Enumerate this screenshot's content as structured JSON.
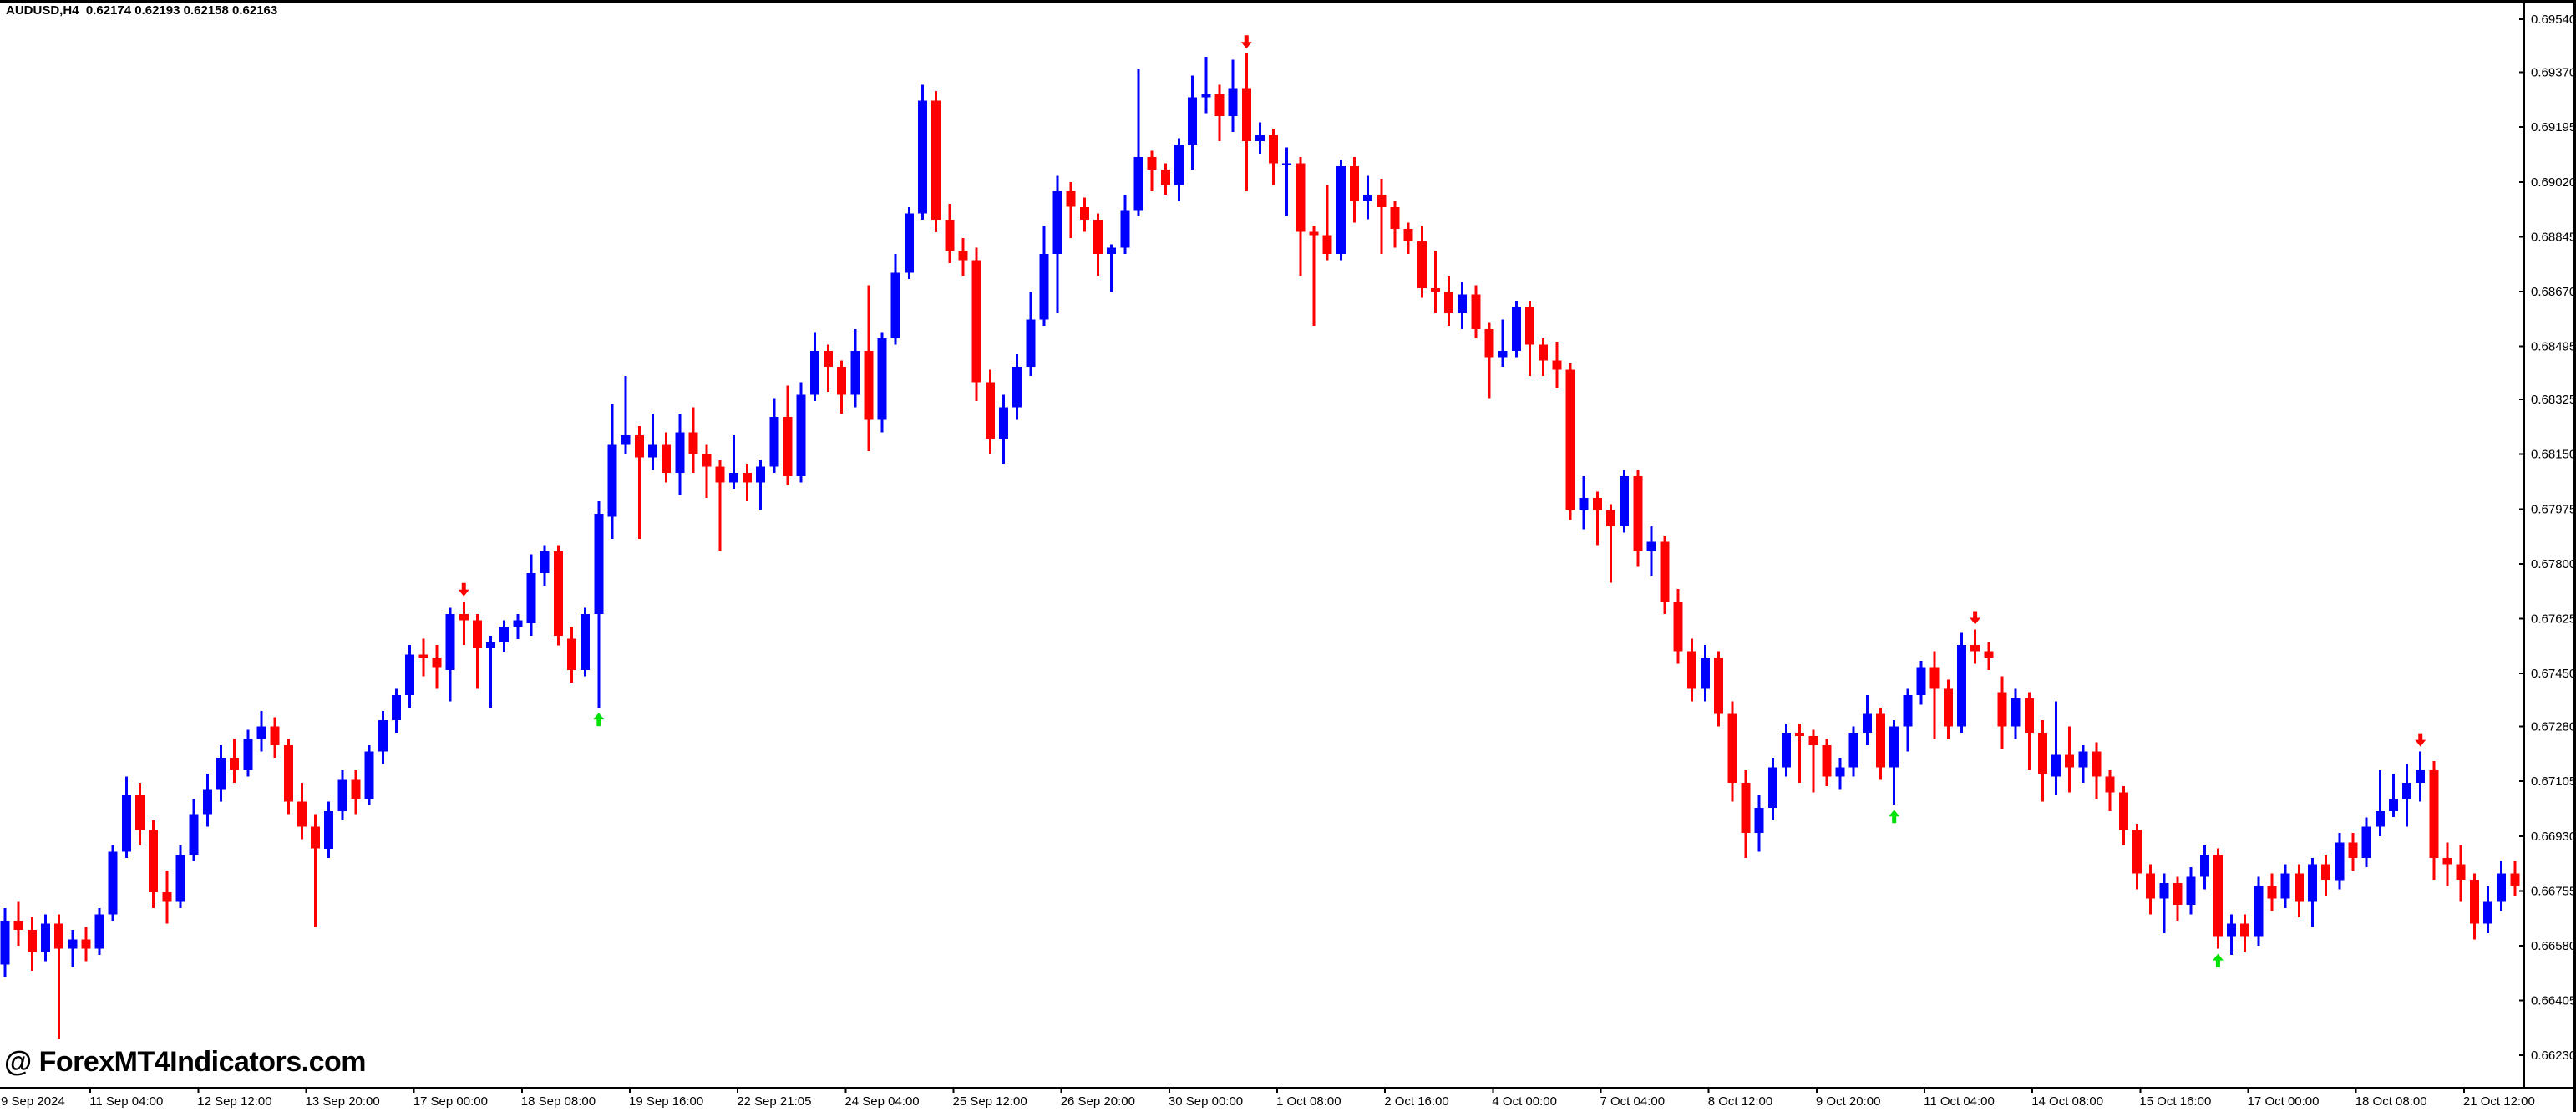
{
  "window": {
    "title": "AUDUSD,H4  0.62174 0.62193 0.62158 0.62163"
  },
  "watermark": {
    "text": "@ ForexMT4Indicators.com"
  },
  "chart_data": {
    "type": "candlestick",
    "symbol": "AUDUSD",
    "timeframe": "H4",
    "grid": false,
    "colors": {
      "up": "#0000ff",
      "down": "#ff0000",
      "arrow_up": "#00e205",
      "arrow_down": "#ff0000",
      "axis": "#000000",
      "background": "#ffffff",
      "text": "#000000"
    },
    "price_axis": {
      "side": "right",
      "top_price": 0.6954,
      "bottom_price": 0.6623,
      "ticks": [
        "0.69540",
        "0.69370",
        "0.69195",
        "0.69020",
        "0.68845",
        "0.68670",
        "0.68495",
        "0.68325",
        "0.68150",
        "0.67975",
        "0.67800",
        "0.67625",
        "0.67450",
        "0.67280",
        "0.67105",
        "0.66930",
        "0.66755",
        "0.66580",
        "0.66405",
        "0.66230"
      ]
    },
    "time_axis": {
      "labels": [
        "9 Sep 2024",
        "11 Sep 04:00",
        "12 Sep 12:00",
        "13 Sep 20:00",
        "17 Sep 00:00",
        "18 Sep 08:00",
        "19 Sep 16:00",
        "22 Sep 21:05",
        "24 Sep 04:00",
        "25 Sep 12:00",
        "26 Sep 20:00",
        "30 Sep 00:00",
        "1 Oct 08:00",
        "2 Oct 16:00",
        "4 Oct 00:00",
        "7 Oct 04:00",
        "8 Oct 12:00",
        "9 Oct 20:00",
        "11 Oct 04:00",
        "14 Oct 08:00",
        "15 Oct 16:00",
        "17 Oct 00:00",
        "18 Oct 08:00",
        "21 Oct 12:00"
      ]
    },
    "candles": [
      [
        0.6652,
        0.667,
        0.6648,
        0.6666
      ],
      [
        0.6666,
        0.6672,
        0.6658,
        0.6663
      ],
      [
        0.6663,
        0.6667,
        0.665,
        0.6656
      ],
      [
        0.6656,
        0.6668,
        0.6653,
        0.6665
      ],
      [
        0.6665,
        0.6668,
        0.6628,
        0.6657
      ],
      [
        0.6657,
        0.6663,
        0.6651,
        0.666
      ],
      [
        0.666,
        0.6664,
        0.6653,
        0.6657
      ],
      [
        0.6657,
        0.667,
        0.6655,
        0.6668
      ],
      [
        0.6668,
        0.669,
        0.6666,
        0.6688
      ],
      [
        0.6688,
        0.6712,
        0.6686,
        0.6706
      ],
      [
        0.6706,
        0.671,
        0.669,
        0.6695
      ],
      [
        0.6695,
        0.6698,
        0.667,
        0.6675
      ],
      [
        0.6675,
        0.6682,
        0.6665,
        0.6672
      ],
      [
        0.6672,
        0.669,
        0.667,
        0.6687
      ],
      [
        0.6687,
        0.6705,
        0.6685,
        0.67
      ],
      [
        0.67,
        0.6713,
        0.6696,
        0.6708
      ],
      [
        0.6708,
        0.6722,
        0.6704,
        0.6718
      ],
      [
        0.6718,
        0.6724,
        0.671,
        0.6714
      ],
      [
        0.6714,
        0.6727,
        0.6712,
        0.6724
      ],
      [
        0.6724,
        0.6733,
        0.672,
        0.6728
      ],
      [
        0.6728,
        0.6731,
        0.6718,
        0.6722
      ],
      [
        0.6722,
        0.6724,
        0.67,
        0.6704
      ],
      [
        0.6704,
        0.671,
        0.6692,
        0.6696
      ],
      [
        0.6696,
        0.67,
        0.6664,
        0.6689
      ],
      [
        0.6689,
        0.6704,
        0.6686,
        0.6701
      ],
      [
        0.6701,
        0.6714,
        0.6698,
        0.6711
      ],
      [
        0.6711,
        0.6714,
        0.67,
        0.6705
      ],
      [
        0.6705,
        0.6722,
        0.6703,
        0.672
      ],
      [
        0.672,
        0.6733,
        0.6716,
        0.673
      ],
      [
        0.673,
        0.674,
        0.6726,
        0.6738
      ],
      [
        0.6738,
        0.6754,
        0.6734,
        0.6751
      ],
      [
        0.6751,
        0.6756,
        0.6744,
        0.675
      ],
      [
        0.675,
        0.6754,
        0.674,
        0.6747
      ],
      [
        0.6746,
        0.6766,
        0.6736,
        0.6764
      ],
      [
        0.6764,
        0.6768,
        0.6754,
        0.6762
      ],
      [
        0.6762,
        0.6764,
        0.674,
        0.6753
      ],
      [
        0.6753,
        0.6757,
        0.6734,
        0.6755
      ],
      [
        0.6755,
        0.6762,
        0.6752,
        0.676
      ],
      [
        0.676,
        0.6764,
        0.6756,
        0.6762
      ],
      [
        0.6761,
        0.6783,
        0.6757,
        0.6777
      ],
      [
        0.6777,
        0.6786,
        0.6773,
        0.6784
      ],
      [
        0.6784,
        0.6786,
        0.6754,
        0.6757
      ],
      [
        0.6756,
        0.676,
        0.6742,
        0.6746
      ],
      [
        0.6746,
        0.6766,
        0.6744,
        0.6764
      ],
      [
        0.6764,
        0.68,
        0.6734,
        0.6796
      ],
      [
        0.6795,
        0.6831,
        0.6788,
        0.6818
      ],
      [
        0.6818,
        0.684,
        0.6815,
        0.6821
      ],
      [
        0.6821,
        0.6824,
        0.6788,
        0.6814
      ],
      [
        0.6814,
        0.6828,
        0.681,
        0.6818
      ],
      [
        0.6818,
        0.6822,
        0.6806,
        0.6809
      ],
      [
        0.6809,
        0.6828,
        0.6802,
        0.6822
      ],
      [
        0.6822,
        0.683,
        0.6809,
        0.6815
      ],
      [
        0.6815,
        0.6818,
        0.6801,
        0.6811
      ],
      [
        0.6811,
        0.6813,
        0.6784,
        0.6806
      ],
      [
        0.6806,
        0.6821,
        0.6804,
        0.6809
      ],
      [
        0.6809,
        0.6812,
        0.68,
        0.6806
      ],
      [
        0.6806,
        0.6813,
        0.6797,
        0.6811
      ],
      [
        0.6811,
        0.6833,
        0.6809,
        0.6827
      ],
      [
        0.6827,
        0.6837,
        0.6805,
        0.6808
      ],
      [
        0.6808,
        0.6838,
        0.6806,
        0.6834
      ],
      [
        0.6834,
        0.6854,
        0.6832,
        0.6848
      ],
      [
        0.6848,
        0.685,
        0.6835,
        0.6843
      ],
      [
        0.6843,
        0.6845,
        0.6828,
        0.6834
      ],
      [
        0.6834,
        0.6855,
        0.683,
        0.6848
      ],
      [
        0.6848,
        0.6869,
        0.6816,
        0.6826
      ],
      [
        0.6826,
        0.6854,
        0.6822,
        0.6852
      ],
      [
        0.6852,
        0.6879,
        0.685,
        0.6873
      ],
      [
        0.6873,
        0.6894,
        0.6871,
        0.6892
      ],
      [
        0.6892,
        0.6933,
        0.689,
        0.6928
      ],
      [
        0.6928,
        0.6931,
        0.6886,
        0.689
      ],
      [
        0.689,
        0.6895,
        0.6876,
        0.688
      ],
      [
        0.688,
        0.6884,
        0.6872,
        0.6877
      ],
      [
        0.6877,
        0.6881,
        0.6832,
        0.6838
      ],
      [
        0.6838,
        0.6842,
        0.6815,
        0.682
      ],
      [
        0.682,
        0.6834,
        0.6812,
        0.683
      ],
      [
        0.683,
        0.6847,
        0.6826,
        0.6843
      ],
      [
        0.6843,
        0.6867,
        0.684,
        0.6858
      ],
      [
        0.6858,
        0.6888,
        0.6856,
        0.6879
      ],
      [
        0.6879,
        0.6904,
        0.686,
        0.6899
      ],
      [
        0.6899,
        0.6902,
        0.6884,
        0.6894
      ],
      [
        0.6894,
        0.6897,
        0.6886,
        0.689
      ],
      [
        0.689,
        0.6892,
        0.6872,
        0.6879
      ],
      [
        0.6879,
        0.6882,
        0.6867,
        0.6881
      ],
      [
        0.6881,
        0.6898,
        0.6879,
        0.6893
      ],
      [
        0.6893,
        0.6938,
        0.6891,
        0.691
      ],
      [
        0.691,
        0.6912,
        0.6899,
        0.6906
      ],
      [
        0.6906,
        0.6908,
        0.6898,
        0.6901
      ],
      [
        0.6901,
        0.6916,
        0.6896,
        0.6914
      ],
      [
        0.6914,
        0.6936,
        0.6906,
        0.6929
      ],
      [
        0.6929,
        0.6942,
        0.6924,
        0.693
      ],
      [
        0.693,
        0.6933,
        0.6915,
        0.6923
      ],
      [
        0.6923,
        0.6941,
        0.6918,
        0.6932
      ],
      [
        0.6932,
        0.6943,
        0.6899,
        0.6915
      ],
      [
        0.6915,
        0.6921,
        0.6911,
        0.6917
      ],
      [
        0.6917,
        0.6919,
        0.6901,
        0.6908
      ],
      [
        0.6908,
        0.6913,
        0.6891,
        0.6908
      ],
      [
        0.6908,
        0.691,
        0.6872,
        0.6886
      ],
      [
        0.6886,
        0.6888,
        0.6856,
        0.6885
      ],
      [
        0.6885,
        0.6901,
        0.6877,
        0.6879
      ],
      [
        0.6879,
        0.6909,
        0.6877,
        0.6907
      ],
      [
        0.6907,
        0.691,
        0.6889,
        0.6896
      ],
      [
        0.6896,
        0.6904,
        0.689,
        0.6898
      ],
      [
        0.6898,
        0.6903,
        0.6879,
        0.6894
      ],
      [
        0.6894,
        0.6896,
        0.6881,
        0.6887
      ],
      [
        0.6887,
        0.6889,
        0.6879,
        0.6883
      ],
      [
        0.6883,
        0.6888,
        0.6865,
        0.6868
      ],
      [
        0.6868,
        0.688,
        0.686,
        0.6867
      ],
      [
        0.6867,
        0.6872,
        0.6856,
        0.686
      ],
      [
        0.686,
        0.687,
        0.6855,
        0.6866
      ],
      [
        0.6866,
        0.6869,
        0.6852,
        0.6855
      ],
      [
        0.6855,
        0.6857,
        0.6833,
        0.6846
      ],
      [
        0.6846,
        0.6858,
        0.6843,
        0.6848
      ],
      [
        0.6848,
        0.6864,
        0.6846,
        0.6862
      ],
      [
        0.6862,
        0.6864,
        0.684,
        0.685
      ],
      [
        0.685,
        0.6852,
        0.684,
        0.6845
      ],
      [
        0.6845,
        0.6851,
        0.6836,
        0.6842
      ],
      [
        0.6842,
        0.6844,
        0.6794,
        0.6797
      ],
      [
        0.6797,
        0.6808,
        0.6791,
        0.6801
      ],
      [
        0.6801,
        0.6803,
        0.6786,
        0.6797
      ],
      [
        0.6797,
        0.6799,
        0.6774,
        0.6792
      ],
      [
        0.6792,
        0.681,
        0.679,
        0.6808
      ],
      [
        0.6808,
        0.681,
        0.6779,
        0.6784
      ],
      [
        0.6784,
        0.6792,
        0.6776,
        0.6787
      ],
      [
        0.6787,
        0.6789,
        0.6764,
        0.6768
      ],
      [
        0.6768,
        0.6772,
        0.6748,
        0.6752
      ],
      [
        0.6752,
        0.6756,
        0.6736,
        0.674
      ],
      [
        0.674,
        0.6754,
        0.6736,
        0.675
      ],
      [
        0.675,
        0.6752,
        0.6728,
        0.6732
      ],
      [
        0.6732,
        0.6736,
        0.6704,
        0.671
      ],
      [
        0.671,
        0.6714,
        0.6686,
        0.6694
      ],
      [
        0.6694,
        0.6706,
        0.6688,
        0.6702
      ],
      [
        0.6702,
        0.6718,
        0.6698,
        0.6715
      ],
      [
        0.6715,
        0.6729,
        0.6712,
        0.6726
      ],
      [
        0.6726,
        0.6729,
        0.671,
        0.6725
      ],
      [
        0.6725,
        0.6727,
        0.6707,
        0.6722
      ],
      [
        0.6722,
        0.6724,
        0.6709,
        0.6712
      ],
      [
        0.6712,
        0.6718,
        0.6708,
        0.6715
      ],
      [
        0.6715,
        0.6728,
        0.6712,
        0.6726
      ],
      [
        0.6726,
        0.6738,
        0.6722,
        0.6732
      ],
      [
        0.6732,
        0.6734,
        0.6711,
        0.6715
      ],
      [
        0.6715,
        0.673,
        0.6703,
        0.6728
      ],
      [
        0.6728,
        0.674,
        0.672,
        0.6738
      ],
      [
        0.6738,
        0.6749,
        0.6735,
        0.6747
      ],
      [
        0.6747,
        0.6752,
        0.6724,
        0.674
      ],
      [
        0.674,
        0.6743,
        0.6724,
        0.6728
      ],
      [
        0.6728,
        0.6758,
        0.6726,
        0.6754
      ],
      [
        0.6754,
        0.6759,
        0.6748,
        0.6752
      ],
      [
        0.6752,
        0.6755,
        0.6746,
        0.675
      ],
      [
        0.6739,
        0.6744,
        0.6721,
        0.6728
      ],
      [
        0.6728,
        0.674,
        0.6724,
        0.6737
      ],
      [
        0.6737,
        0.6739,
        0.6714,
        0.6726
      ],
      [
        0.6726,
        0.673,
        0.6704,
        0.6713
      ],
      [
        0.6712,
        0.6736,
        0.6706,
        0.6719
      ],
      [
        0.6719,
        0.6728,
        0.6707,
        0.6715
      ],
      [
        0.6715,
        0.6722,
        0.671,
        0.672
      ],
      [
        0.672,
        0.6723,
        0.6705,
        0.6712
      ],
      [
        0.6712,
        0.6714,
        0.6701,
        0.6707
      ],
      [
        0.6707,
        0.6709,
        0.669,
        0.6695
      ],
      [
        0.6695,
        0.6697,
        0.6676,
        0.6681
      ],
      [
        0.6681,
        0.6684,
        0.6668,
        0.6673
      ],
      [
        0.6673,
        0.6681,
        0.6662,
        0.6678
      ],
      [
        0.6678,
        0.668,
        0.6666,
        0.6671
      ],
      [
        0.6671,
        0.6683,
        0.6668,
        0.668
      ],
      [
        0.668,
        0.669,
        0.6676,
        0.6687
      ],
      [
        0.6687,
        0.6689,
        0.6657,
        0.6661
      ],
      [
        0.6661,
        0.6668,
        0.6655,
        0.6665
      ],
      [
        0.6665,
        0.6668,
        0.6656,
        0.6661
      ],
      [
        0.6661,
        0.668,
        0.6658,
        0.6677
      ],
      [
        0.6677,
        0.6681,
        0.6669,
        0.6673
      ],
      [
        0.6673,
        0.6684,
        0.667,
        0.6681
      ],
      [
        0.6681,
        0.6684,
        0.6667,
        0.6672
      ],
      [
        0.6672,
        0.6686,
        0.6664,
        0.6684
      ],
      [
        0.6684,
        0.6687,
        0.6674,
        0.6679
      ],
      [
        0.6679,
        0.6694,
        0.6676,
        0.6691
      ],
      [
        0.6691,
        0.6694,
        0.6682,
        0.6686
      ],
      [
        0.6686,
        0.6699,
        0.6683,
        0.6696
      ],
      [
        0.6696,
        0.6714,
        0.6693,
        0.6701
      ],
      [
        0.6701,
        0.6713,
        0.6699,
        0.6705
      ],
      [
        0.6705,
        0.6716,
        0.6696,
        0.671
      ],
      [
        0.671,
        0.672,
        0.6704,
        0.6714
      ],
      [
        0.6714,
        0.6717,
        0.6679,
        0.6686
      ],
      [
        0.6686,
        0.6691,
        0.6677,
        0.6684
      ],
      [
        0.6684,
        0.669,
        0.6672,
        0.6679
      ],
      [
        0.6679,
        0.6681,
        0.666,
        0.6665
      ],
      [
        0.6665,
        0.6677,
        0.6662,
        0.6672
      ],
      [
        0.6672,
        0.6685,
        0.6669,
        0.6681
      ],
      [
        0.6681,
        0.6685,
        0.6674,
        0.6677
      ]
    ],
    "signals": [
      {
        "index": 34,
        "dir": "down"
      },
      {
        "index": 44,
        "dir": "up"
      },
      {
        "index": 92,
        "dir": "down"
      },
      {
        "index": 140,
        "dir": "up"
      },
      {
        "index": 146,
        "dir": "down"
      },
      {
        "index": 164,
        "dir": "up"
      },
      {
        "index": 179,
        "dir": "down"
      }
    ]
  }
}
